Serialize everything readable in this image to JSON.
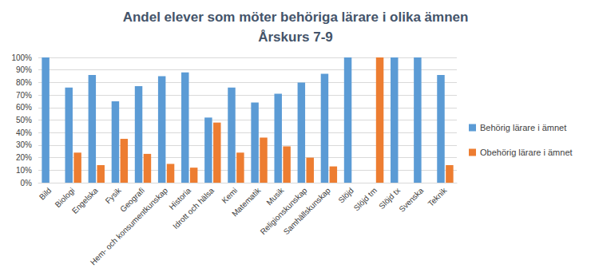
{
  "chart_data": {
    "type": "bar",
    "title": "Andel elever som möter behöriga lärare i olika ämnen",
    "subtitle": "Årskurs 7-9",
    "categories": [
      "Bild",
      "Biologi",
      "Engelska",
      "Fysik",
      "Geografi",
      "Hem- och konsumentkunskap",
      "Historia",
      "Idrott och hälsa",
      "Kemi",
      "Matematik",
      "Musik",
      "Religionskunskap",
      "Samhällskunskap",
      "Slöjd",
      "Slöjd tm",
      "Slöjd tx",
      "Svenska",
      "Teknik"
    ],
    "series": [
      {
        "name": "Behörig lärare i ämnet",
        "color": "#5b9bd5",
        "values": [
          100,
          76,
          86,
          65,
          77,
          85,
          88,
          52,
          76,
          64,
          71,
          80,
          87,
          100,
          0,
          100,
          100,
          86
        ]
      },
      {
        "name": "Obehörig lärare i ämnet",
        "color": "#ed7d31",
        "values": [
          0,
          24,
          14,
          35,
          23,
          15,
          12,
          48,
          24,
          36,
          29,
          20,
          13,
          0,
          100,
          0,
          0,
          14
        ]
      }
    ],
    "ylim": [
      0,
      100
    ],
    "yticks": [
      {
        "value": 0,
        "label": "0%"
      },
      {
        "value": 10,
        "label": "10%"
      },
      {
        "value": 20,
        "label": "20%"
      },
      {
        "value": 30,
        "label": "30%"
      },
      {
        "value": 40,
        "label": "40%"
      },
      {
        "value": 50,
        "label": "50%"
      },
      {
        "value": 60,
        "label": "60%"
      },
      {
        "value": 70,
        "label": "70%"
      },
      {
        "value": 80,
        "label": "80%"
      },
      {
        "value": 90,
        "label": "90%"
      },
      {
        "value": 100,
        "label": "100%"
      }
    ],
    "grid": true,
    "legend": "right"
  }
}
